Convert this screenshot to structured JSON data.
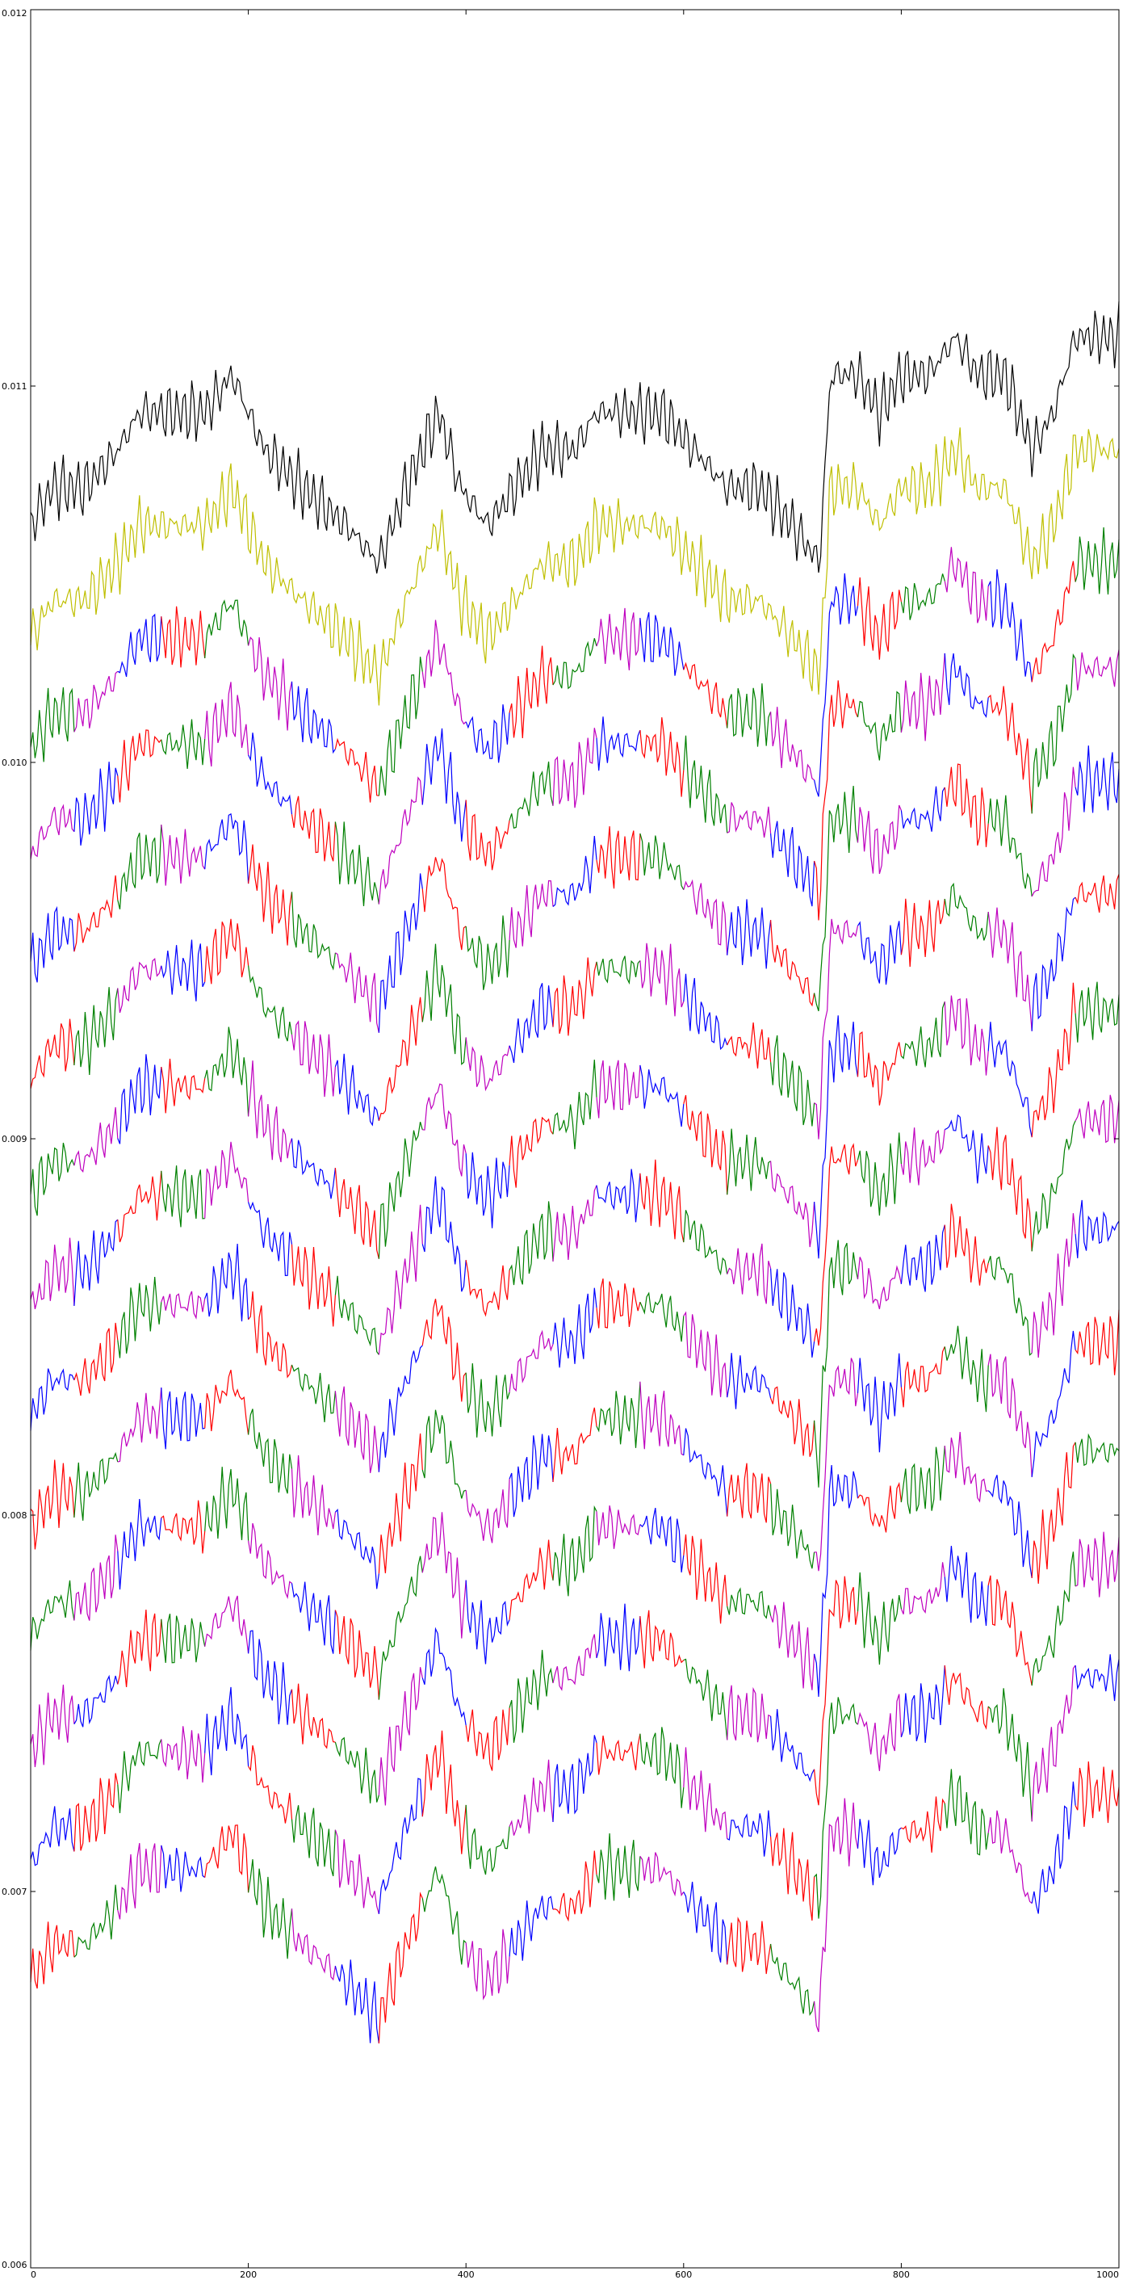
{
  "chart_data": {
    "type": "line",
    "title": "",
    "xlabel": "",
    "ylabel": "",
    "xlim": [
      0,
      1000
    ],
    "ylim": [
      0.006,
      0.012
    ],
    "xticks": [
      0,
      200,
      400,
      600,
      800,
      1000
    ],
    "xtick_labels": [
      "0",
      "200",
      "400",
      "600",
      "800",
      "1000"
    ],
    "yticks": [
      0.006,
      0.007,
      0.008,
      0.009,
      0.01,
      0.011,
      0.012
    ],
    "ytick_labels": [
      "0.006",
      "0.007",
      "0.008",
      "0.009",
      "0.010",
      "0.011",
      "0.012"
    ],
    "grid": false,
    "legend": "none",
    "segment_colors": [
      "#0000ff",
      "#ff0000",
      "#008000",
      "#bf00bf"
    ],
    "base_shape": {
      "x": [
        0,
        20,
        50,
        80,
        100,
        130,
        160,
        185,
        215,
        250,
        290,
        320,
        345,
        375,
        395,
        420,
        445,
        470,
        500,
        520,
        550,
        580,
        610,
        640,
        670,
        700,
        725,
        735,
        760,
        780,
        800,
        825,
        850,
        870,
        895,
        920,
        940,
        960,
        985,
        1000
      ],
      "y": [
        0.0,
        0.0001,
        0.0001,
        0.0002,
        0.0003,
        0.0003,
        0.0003,
        0.0004,
        0.0002,
        0.0001,
        -0.0,
        -0.0001,
        0.0001,
        0.0003,
        0.0001,
        -0.0,
        0.0001,
        0.0002,
        0.0002,
        0.0003,
        0.0003,
        0.0003,
        0.0002,
        0.0001,
        0.0001,
        0.0,
        -0.0001,
        0.0004,
        0.0004,
        0.0003,
        0.0004,
        0.0004,
        0.0005,
        0.0004,
        0.0004,
        0.0002,
        0.0003,
        0.0005,
        0.0005,
        0.0005
      ]
    },
    "series": [
      {
        "color": "#000000",
        "segmented": false,
        "start": 0.01063
      },
      {
        "color": "#bfbf00",
        "segmented": false,
        "start": 0.01033
      },
      {
        "color": "#008000",
        "segmented": true,
        "start": 0.01003
      },
      {
        "color": "#bf00bf",
        "segmented": true,
        "start": 0.00975
      },
      {
        "color": "#ff0000",
        "segmented": true,
        "start": 0.00945
      },
      {
        "color": "#0000ff",
        "segmented": true,
        "start": 0.00915
      },
      {
        "color": "#008000",
        "segmented": true,
        "start": 0.00884
      },
      {
        "color": "#bf00bf",
        "segmented": true,
        "start": 0.00855
      },
      {
        "color": "#ff0000",
        "segmented": true,
        "start": 0.00826
      },
      {
        "color": "#008000",
        "segmented": true,
        "start": 0.00796
      },
      {
        "color": "#0000ff",
        "segmented": true,
        "start": 0.00767
      },
      {
        "color": "#bf00bf",
        "segmented": true,
        "start": 0.00737
      },
      {
        "color": "#ff0000",
        "segmented": true,
        "start": 0.00707
      },
      {
        "color": "#bf00bf",
        "segmented": true,
        "start": 0.00676
      }
    ]
  }
}
